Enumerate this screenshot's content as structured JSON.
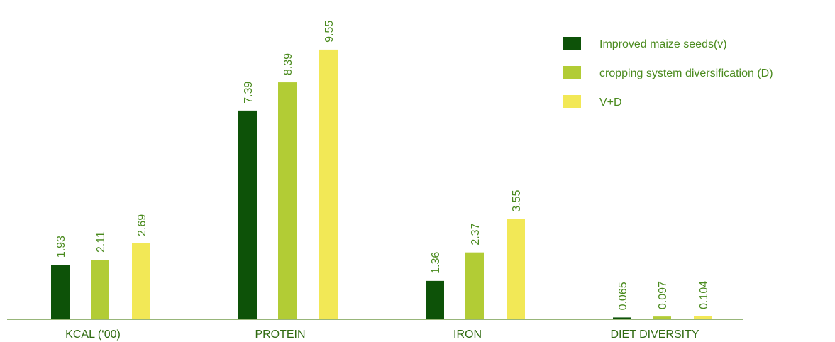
{
  "chart_data": {
    "type": "bar",
    "categories": [
      "KCAL (‘00)",
      "PROTEIN",
      "IRON",
      "DIET DIVERSITY"
    ],
    "series": [
      {
        "name": "Improved maize seeds(v)",
        "color": "#0d5208",
        "values": [
          1.93,
          7.39,
          1.36,
          0.065
        ]
      },
      {
        "name": "cropping system diversification (D)",
        "color": "#b2cc35",
        "values": [
          2.11,
          8.39,
          2.37,
          0.097
        ]
      },
      {
        "name": "V+D",
        "color": "#f2e856",
        "values": [
          2.69,
          9.55,
          3.55,
          0.104
        ]
      }
    ],
    "ylim": [
      0,
      10
    ]
  }
}
